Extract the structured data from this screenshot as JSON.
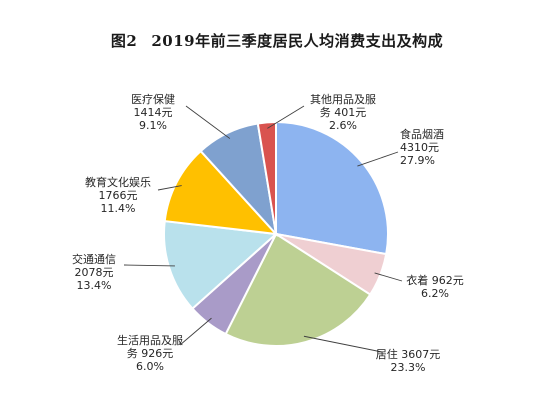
{
  "chart_title": {
    "figure_no": "图2",
    "text": "2019年前三季度居民人均消费支出及构成"
  },
  "chart_data": {
    "type": "pie",
    "title": "图2 2019年前三季度居民人均消费支出及构成",
    "slices": [
      {
        "category": "食品烟酒",
        "amount": 4310,
        "amount_text": "4310元",
        "percent": 27.9,
        "percent_text": "27.9%",
        "color": "#8DB4F0"
      },
      {
        "category": "衣着",
        "amount": 962,
        "amount_text": "962元",
        "percent": 6.2,
        "percent_text": "6.2%",
        "color": "#EFCFD2"
      },
      {
        "category": "居住",
        "amount": 3607,
        "amount_text": "3607元",
        "percent": 23.3,
        "percent_text": "23.3%",
        "color": "#BDD093"
      },
      {
        "category": "生活用品及服务",
        "amount": 926,
        "amount_text": "926元",
        "percent": 6.0,
        "percent_text": "6.0%",
        "color": "#A99BC8"
      },
      {
        "category": "交通通信",
        "amount": 2078,
        "amount_text": "2078元",
        "percent": 13.4,
        "percent_text": "13.4%",
        "color": "#B9E1EC"
      },
      {
        "category": "教育文化娱乐",
        "amount": 1766,
        "amount_text": "1766元",
        "percent": 11.4,
        "percent_text": "11.4%",
        "color": "#FFC000"
      },
      {
        "category": "医疗保健",
        "amount": 1414,
        "amount_text": "1414元",
        "percent": 9.1,
        "percent_text": "9.1%",
        "color": "#7FA1CF"
      },
      {
        "category": "其他用品及服务",
        "amount": 401,
        "amount_text": "401元",
        "percent": 2.6,
        "percent_text": "2.6%",
        "color": "#D9534F"
      }
    ]
  },
  "labels": [
    {
      "line1": "食品烟酒",
      "line2": "4310元",
      "line3": "27.9%"
    },
    {
      "line1": "衣着 962元",
      "line2": "6.2%"
    },
    {
      "line1": "居住 3607元",
      "line2": "23.3%"
    },
    {
      "line1": "生活用品及服",
      "line2": "务 926元",
      "line3": "6.0%"
    },
    {
      "line1": "交通通信",
      "line2": "2078元",
      "line3": "13.4%"
    },
    {
      "line1": "教育文化娱乐",
      "line2": "1766元",
      "line3": "11.4%"
    },
    {
      "line1": "医疗保健",
      "line2": "1414元",
      "line3": "9.1%"
    },
    {
      "line1": "其他用品及服",
      "line2": "务 401元",
      "line3": "2.6%"
    }
  ]
}
